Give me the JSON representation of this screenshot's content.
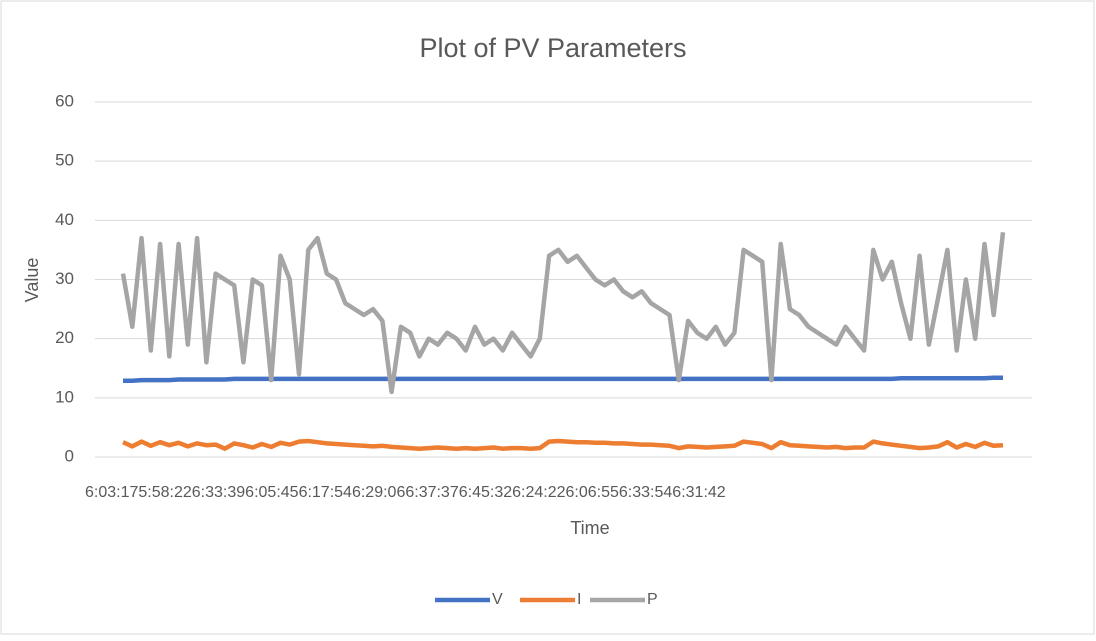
{
  "chart_data": {
    "type": "line",
    "title": "Plot of PV Parameters",
    "x_label": "Time",
    "y_label": "Value",
    "categories": [
      "6:03:17",
      null,
      null,
      null,
      null,
      null,
      null,
      null,
      "5:58:22",
      null,
      null,
      null,
      null,
      null,
      null,
      null,
      "6:33:39",
      null,
      null,
      null,
      null,
      null,
      null,
      null,
      "6:05:45",
      null,
      null,
      null,
      null,
      null,
      null,
      null,
      "6:17:54",
      null,
      null,
      null,
      null,
      null,
      null,
      null,
      "6:29:06",
      null,
      null,
      null,
      null,
      null,
      null,
      null,
      "6:37:37",
      null,
      null,
      null,
      null,
      null,
      null,
      null,
      "6:45:32",
      null,
      null,
      null,
      null,
      null,
      null,
      null,
      "6:24:22",
      null,
      null,
      null,
      null,
      null,
      null,
      null,
      "6:06:55",
      null,
      null,
      null,
      null,
      null,
      null,
      null,
      "6:33:54",
      null,
      null,
      null,
      null,
      null,
      null,
      null,
      "6:31:42",
      null,
      null,
      null,
      null,
      null,
      null,
      null
    ],
    "series": [
      {
        "name": "V",
        "color": "#4472c4",
        "values": [
          12.9,
          12.9,
          13.0,
          13.0,
          13.0,
          13.0,
          13.1,
          13.1,
          13.1,
          13.1,
          13.1,
          13.1,
          13.2,
          13.2,
          13.2,
          13.2,
          13.2,
          13.2,
          13.2,
          13.2,
          13.2,
          13.2,
          13.2,
          13.2,
          13.2,
          13.2,
          13.2,
          13.2,
          13.2,
          13.2,
          13.2,
          13.2,
          13.2,
          13.2,
          13.2,
          13.2,
          13.2,
          13.2,
          13.2,
          13.2,
          13.2,
          13.2,
          13.2,
          13.2,
          13.2,
          13.2,
          13.2,
          13.2,
          13.2,
          13.2,
          13.2,
          13.2,
          13.2,
          13.2,
          13.2,
          13.2,
          13.2,
          13.2,
          13.2,
          13.2,
          13.2,
          13.2,
          13.2,
          13.2,
          13.2,
          13.2,
          13.2,
          13.2,
          13.2,
          13.2,
          13.2,
          13.2,
          13.2,
          13.2,
          13.2,
          13.2,
          13.2,
          13.2,
          13.2,
          13.2,
          13.2,
          13.2,
          13.2,
          13.2,
          13.3,
          13.3,
          13.3,
          13.3,
          13.3,
          13.3,
          13.3,
          13.3,
          13.3,
          13.3,
          13.4,
          13.4
        ]
      },
      {
        "name": "I",
        "color": "#ed7d31",
        "values": [
          2.5,
          1.8,
          2.6,
          1.9,
          2.5,
          2.0,
          2.4,
          1.8,
          2.3,
          2.0,
          2.1,
          1.4,
          2.3,
          2.0,
          1.6,
          2.2,
          1.7,
          2.4,
          2.1,
          2.6,
          2.7,
          2.5,
          2.3,
          2.2,
          2.1,
          2.0,
          1.9,
          1.8,
          1.9,
          1.7,
          1.6,
          1.5,
          1.4,
          1.5,
          1.6,
          1.5,
          1.4,
          1.5,
          1.4,
          1.5,
          1.6,
          1.4,
          1.5,
          1.5,
          1.4,
          1.5,
          2.6,
          2.7,
          2.6,
          2.5,
          2.5,
          2.4,
          2.4,
          2.3,
          2.3,
          2.2,
          2.1,
          2.1,
          2.0,
          1.9,
          1.5,
          1.8,
          1.7,
          1.6,
          1.7,
          1.8,
          1.9,
          2.6,
          2.4,
          2.2,
          1.5,
          2.5,
          2.0,
          1.9,
          1.8,
          1.7,
          1.6,
          1.7,
          1.5,
          1.6,
          1.6,
          2.6,
          2.3,
          2.1,
          1.9,
          1.7,
          1.5,
          1.6,
          1.8,
          2.5,
          1.6,
          2.2,
          1.7,
          2.4,
          1.9,
          2.0
        ]
      },
      {
        "name": "P",
        "color": "#a5a5a5",
        "values": [
          31,
          22,
          37,
          18,
          36,
          17,
          36,
          19,
          37,
          16,
          31,
          30,
          29,
          16,
          30,
          29,
          13,
          34,
          30,
          14,
          35,
          37,
          31,
          30,
          26,
          25,
          24,
          25,
          23,
          11,
          22,
          21,
          17,
          20,
          19,
          21,
          20,
          18,
          22,
          19,
          20,
          18,
          21,
          19,
          17,
          20,
          34,
          35,
          33,
          34,
          32,
          30,
          29,
          30,
          28,
          27,
          28,
          26,
          25,
          24,
          13,
          23,
          21,
          20,
          22,
          19,
          21,
          35,
          34,
          33,
          13,
          36,
          25,
          24,
          22,
          21,
          20,
          19,
          22,
          20,
          18,
          35,
          30,
          33,
          26,
          20,
          34,
          19,
          27,
          35,
          18,
          30,
          20,
          36,
          24,
          38
        ]
      }
    ],
    "ylim": [
      0,
      60
    ],
    "yticks": [
      0,
      10,
      20,
      30,
      40,
      50,
      60
    ],
    "grid": true,
    "legend": "bottom"
  }
}
